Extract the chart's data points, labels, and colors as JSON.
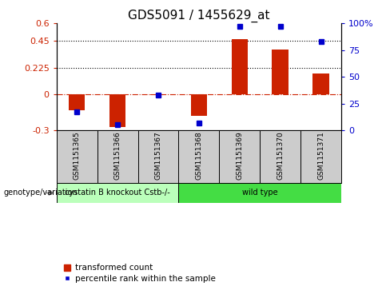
{
  "title": "GDS5091 / 1455629_at",
  "samples": [
    "GSM1151365",
    "GSM1151366",
    "GSM1151367",
    "GSM1151368",
    "GSM1151369",
    "GSM1151370",
    "GSM1151371"
  ],
  "transformed_count": [
    -0.13,
    -0.27,
    -0.005,
    -0.175,
    0.465,
    0.38,
    0.175
  ],
  "percentile_rank": [
    17,
    5,
    33,
    7,
    97,
    97,
    83
  ],
  "ylim_left": [
    -0.3,
    0.6
  ],
  "ylim_right": [
    0,
    100
  ],
  "yticks_left": [
    -0.3,
    0.0,
    0.225,
    0.45,
    0.6
  ],
  "yticks_right": [
    0,
    25,
    50,
    75,
    100
  ],
  "ytick_labels_left": [
    "-0.3",
    "0",
    "0.225",
    "0.45",
    "0.6"
  ],
  "ytick_labels_right": [
    "0",
    "25",
    "50",
    "75",
    "100%"
  ],
  "hlines": [
    0.225,
    0.45
  ],
  "bar_color": "#cc2200",
  "dot_color": "#0000cc",
  "zero_line_color": "#cc2200",
  "groups": [
    {
      "label": "cystatin B knockout Cstb-/-",
      "samples": [
        0,
        1,
        2
      ],
      "color": "#bbffbb"
    },
    {
      "label": "wild type",
      "samples": [
        3,
        4,
        5,
        6
      ],
      "color": "#44dd44"
    }
  ],
  "genotype_label": "genotype/variation",
  "legend_bar_label": "transformed count",
  "legend_dot_label": "percentile rank within the sample",
  "title_fontsize": 11,
  "tick_fontsize": 8,
  "label_fontsize": 7,
  "background_color": "#ffffff",
  "sample_bg": "#cccccc"
}
